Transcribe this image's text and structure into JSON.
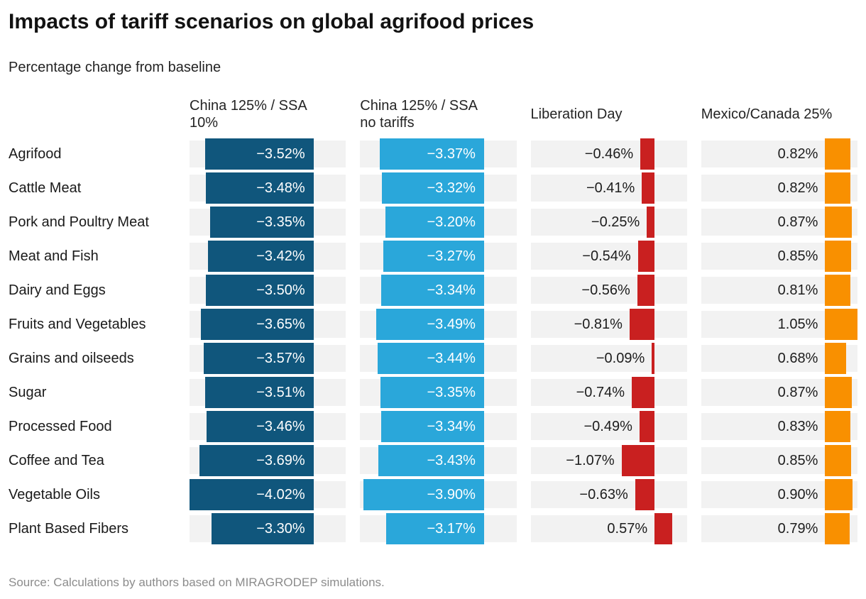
{
  "header": {
    "title": "Impacts of tariff scenarios on global agrifood prices",
    "subtitle": "Percentage change from baseline"
  },
  "footer": {
    "source": "Source: Calculations by authors based on MIRAGRODEP simulations."
  },
  "chart_data": {
    "type": "bar",
    "layout": "split-bar-columns",
    "title": "Impacts of tariff scenarios on global agrifood prices",
    "subtitle": "Percentage change from baseline",
    "unit": "%",
    "axis_range": [
      -4.02,
      1.05
    ],
    "grid": false,
    "legend_position": "column-headers",
    "series": [
      {
        "name": "China 125% / SSA 10%",
        "color": "#10567C"
      },
      {
        "name": "China 125% / SSA no tariffs",
        "color": "#2AA7DA"
      },
      {
        "name": "Liberation Day",
        "color": "#C92020"
      },
      {
        "name": "Mexico/Canada 25%",
        "color": "#F99000"
      }
    ],
    "categories": [
      "Agrifood",
      "Cattle Meat",
      "Pork and Poultry Meat",
      "Meat and Fish",
      "Dairy and Eggs",
      "Fruits and Vegetables",
      "Grains and oilseeds",
      "Sugar",
      "Processed Food",
      "Coffee and Tea",
      "Vegetable Oils",
      "Plant Based Fibers"
    ],
    "rows": [
      {
        "label": "Agrifood",
        "values": [
          -3.52,
          -3.37,
          -0.46,
          0.82
        ],
        "display": [
          "−3.52%",
          "−3.37%",
          "−0.46%",
          "0.82%"
        ]
      },
      {
        "label": "Cattle Meat",
        "values": [
          -3.48,
          -3.32,
          -0.41,
          0.82
        ],
        "display": [
          "−3.48%",
          "−3.32%",
          "−0.41%",
          "0.82%"
        ]
      },
      {
        "label": "Pork and Poultry Meat",
        "values": [
          -3.35,
          -3.2,
          -0.25,
          0.87
        ],
        "display": [
          "−3.35%",
          "−3.20%",
          "−0.25%",
          "0.87%"
        ]
      },
      {
        "label": "Meat and Fish",
        "values": [
          -3.42,
          -3.27,
          -0.54,
          0.85
        ],
        "display": [
          "−3.42%",
          "−3.27%",
          "−0.54%",
          "0.85%"
        ]
      },
      {
        "label": "Dairy and Eggs",
        "values": [
          -3.5,
          -3.34,
          -0.56,
          0.81
        ],
        "display": [
          "−3.50%",
          "−3.34%",
          "−0.56%",
          "0.81%"
        ]
      },
      {
        "label": "Fruits and Vegetables",
        "values": [
          -3.65,
          -3.49,
          -0.81,
          1.05
        ],
        "display": [
          "−3.65%",
          "−3.49%",
          "−0.81%",
          "1.05%"
        ]
      },
      {
        "label": "Grains and oilseeds",
        "values": [
          -3.57,
          -3.44,
          -0.09,
          0.68
        ],
        "display": [
          "−3.57%",
          "−3.44%",
          "−0.09%",
          "0.68%"
        ]
      },
      {
        "label": "Sugar",
        "values": [
          -3.51,
          -3.35,
          -0.74,
          0.87
        ],
        "display": [
          "−3.51%",
          "−3.35%",
          "−0.74%",
          "0.87%"
        ]
      },
      {
        "label": "Processed Food",
        "values": [
          -3.46,
          -3.34,
          -0.49,
          0.83
        ],
        "display": [
          "−3.46%",
          "−3.34%",
          "−0.49%",
          "0.83%"
        ]
      },
      {
        "label": "Coffee and Tea",
        "values": [
          -3.69,
          -3.43,
          -1.07,
          0.85
        ],
        "display": [
          "−3.69%",
          "−3.43%",
          "−1.07%",
          "0.85%"
        ]
      },
      {
        "label": "Vegetable Oils",
        "values": [
          -4.02,
          -3.9,
          -0.63,
          0.9
        ],
        "display": [
          "−4.02%",
          "−3.90%",
          "−0.63%",
          "0.90%"
        ]
      },
      {
        "label": "Plant Based Fibers",
        "values": [
          -3.3,
          -3.17,
          0.57,
          0.79
        ],
        "display": [
          "−3.30%",
          "−3.17%",
          "0.57%",
          "0.79%"
        ]
      }
    ],
    "colors": {
      "track": "#F2F2F2",
      "label_inside": "#FFFFFF",
      "label_outside": "#1D1D1D",
      "source_text": "#8C8C8C"
    },
    "source": "Source: Calculations by authors based on MIRAGRODEP simulations."
  }
}
